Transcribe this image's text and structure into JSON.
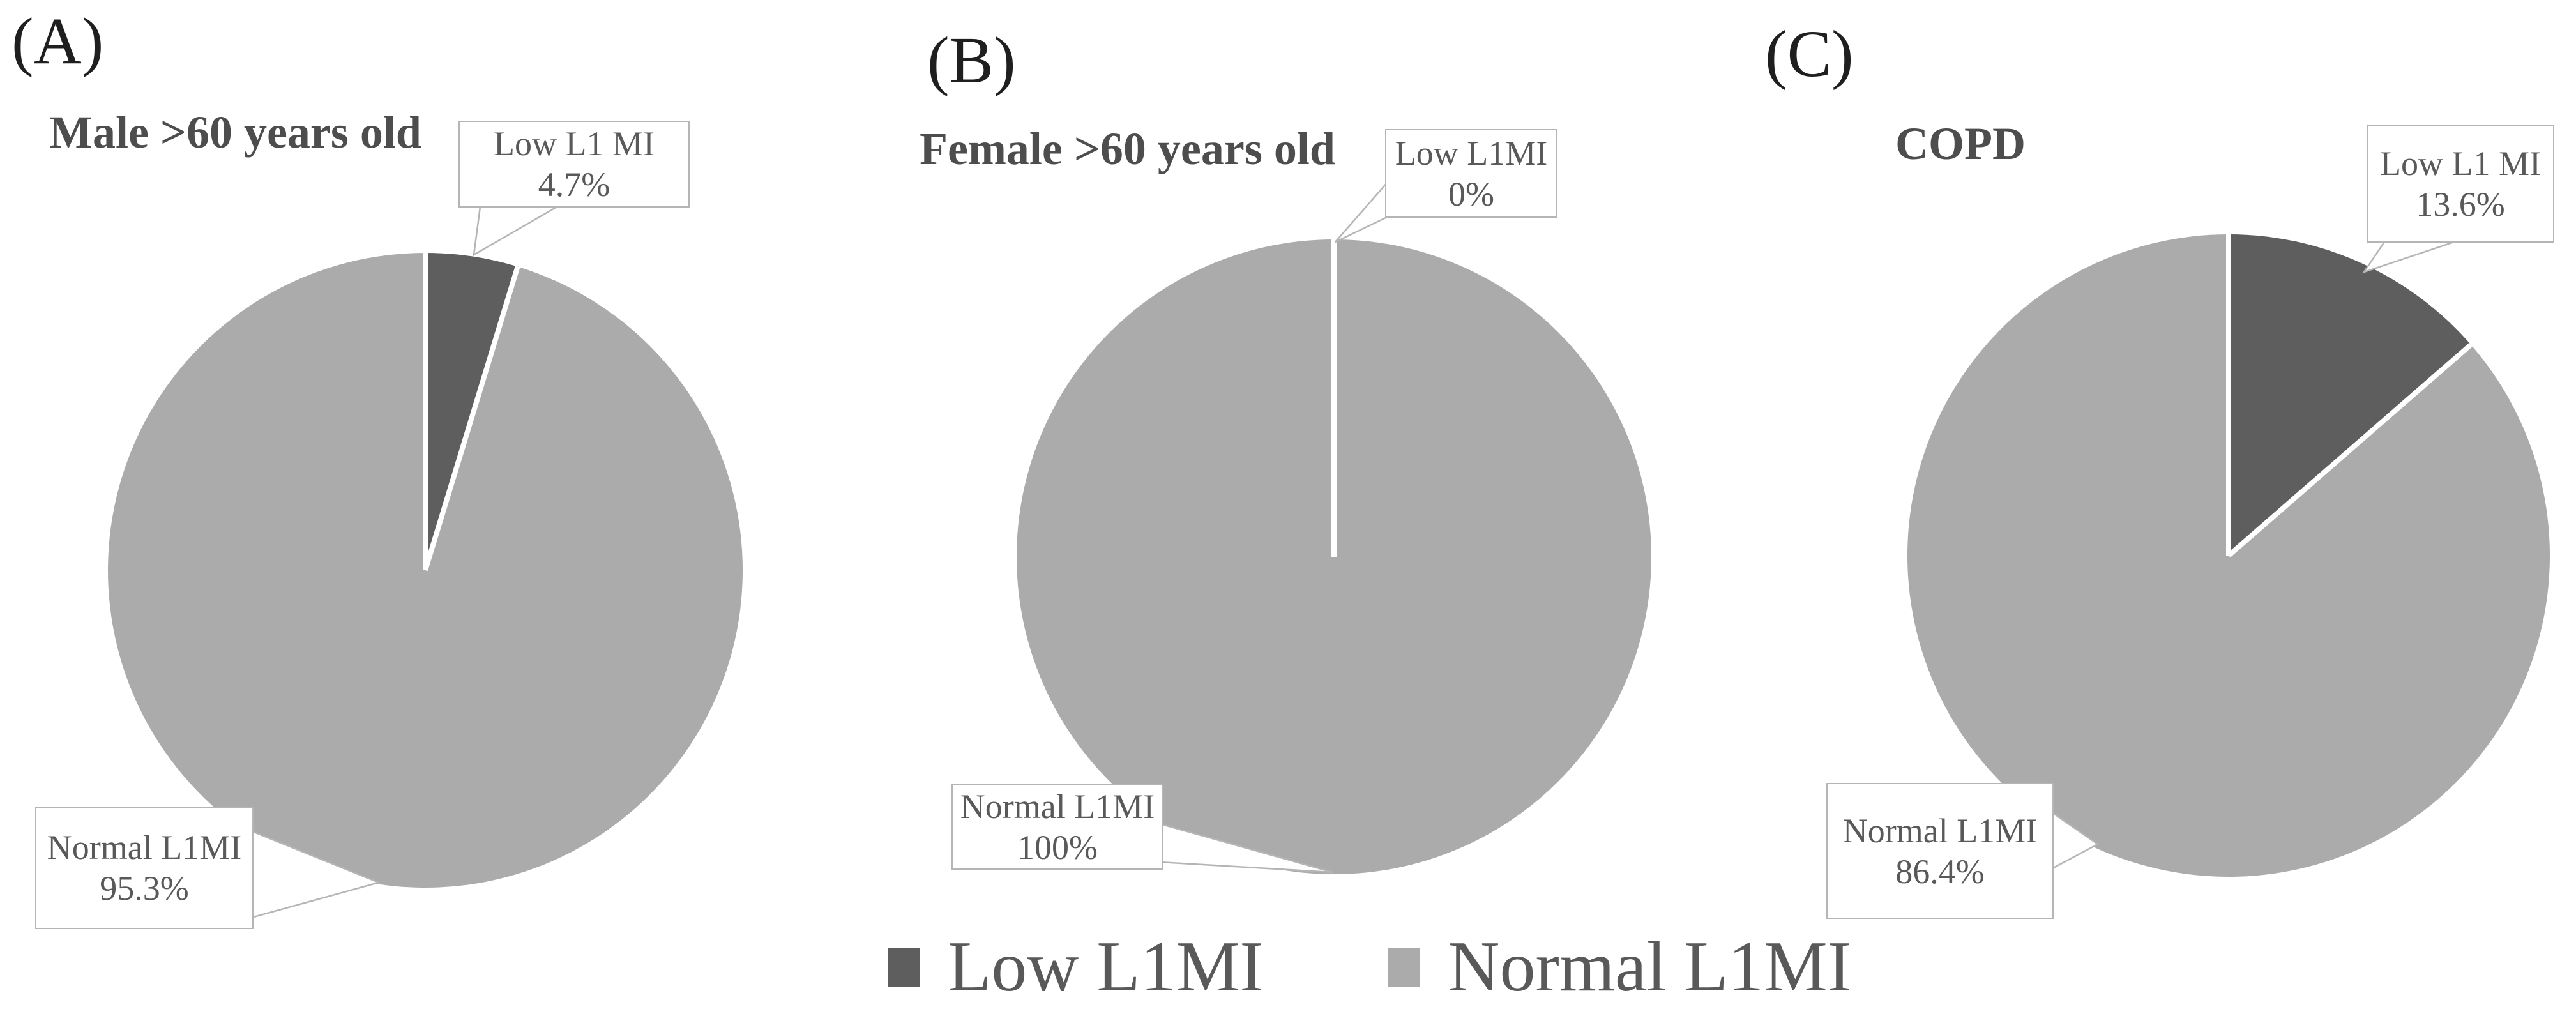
{
  "legend": {
    "position": "bottom-center",
    "items": [
      {
        "label": "Low L1MI",
        "color": "#5e5e5e"
      },
      {
        "label": "Normal L1MI",
        "color": "#ababab"
      }
    ]
  },
  "colors": {
    "low_slice": "#5e5e5e",
    "normal_slice": "#ababab",
    "title_text": "#4d4d4d",
    "callout_text": "#595959",
    "callout_border": "#b5b5b5",
    "separator": "#ffffff"
  },
  "chart_data": {
    "type": "pie",
    "legend_entries": [
      "Low L1MI",
      "Normal L1MI"
    ],
    "pies": [
      {
        "panel_label": "(A)",
        "title": "Male >60 years old",
        "categories": [
          "Low L1MI",
          "Normal L1MI"
        ],
        "values": [
          4.7,
          95.3
        ],
        "callout_low": {
          "title": "Low L1 MI",
          "value": "4.7%"
        },
        "callout_normal": {
          "title": "Normal L1MI",
          "value": "95.3%"
        }
      },
      {
        "panel_label": "(B)",
        "title": "Female >60 years old",
        "categories": [
          "Low L1MI",
          "Normal L1MI"
        ],
        "values": [
          0,
          100
        ],
        "callout_low": {
          "title": "Low L1MI",
          "value": "0%"
        },
        "callout_normal": {
          "title": "Normal L1MI",
          "value": "100%"
        }
      },
      {
        "panel_label": "(C)",
        "title": "COPD",
        "categories": [
          "Low L1MI",
          "Normal L1MI"
        ],
        "values": [
          13.6,
          86.4
        ],
        "callout_low": {
          "title": "Low L1 MI",
          "value": "13.6%"
        },
        "callout_normal": {
          "title": "Normal L1MI",
          "value": "86.4%"
        }
      }
    ]
  }
}
